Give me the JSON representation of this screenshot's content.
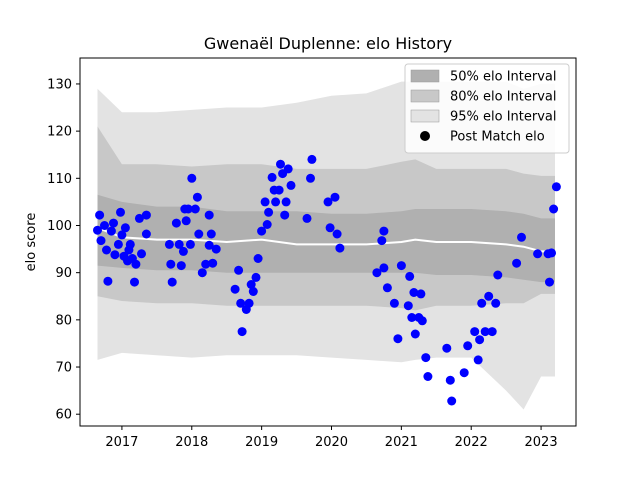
{
  "chart_data": {
    "type": "scatter",
    "title": "Gwenaël Duplenne: elo History",
    "xlabel": "",
    "ylabel": "elo score",
    "xlim": [
      2016.4,
      2023.5
    ],
    "ylim": [
      57.5,
      135.5
    ],
    "x_ticks": [
      2017,
      2018,
      2019,
      2020,
      2021,
      2022,
      2023
    ],
    "y_ticks": [
      60,
      70,
      80,
      90,
      100,
      110,
      120,
      130
    ],
    "legend": {
      "placement": "top-right",
      "entries": [
        {
          "label": "50% elo Interval",
          "color": "#b0b0b0"
        },
        {
          "label": "80% elo Interval",
          "color": "#c8c8c8"
        },
        {
          "label": "95% elo Interval",
          "color": "#e3e3e3"
        },
        {
          "label": "Post Match elo",
          "color": "#000000"
        }
      ]
    },
    "colors": {
      "points": "#0000ff",
      "mean_line": "#ffffff",
      "band50": "#b0b0b0",
      "band80": "#c8c8c8",
      "band95": "#e3e3e3"
    },
    "band_x": [
      2016.65,
      2017.0,
      2017.5,
      2018.0,
      2018.5,
      2019.0,
      2019.5,
      2020.0,
      2020.5,
      2021.0,
      2021.2,
      2021.5,
      2022.0,
      2022.5,
      2022.75,
      2023.0,
      2023.2
    ],
    "mean": [
      99.5,
      97.5,
      97.0,
      97.0,
      96.5,
      97.0,
      96.0,
      96.0,
      96.0,
      96.5,
      97.0,
      96.5,
      96.5,
      96.0,
      95.5,
      94.5,
      94.5
    ],
    "p50_low": [
      91.5,
      91.0,
      90.5,
      90.5,
      90.0,
      90.0,
      90.0,
      90.0,
      90.0,
      90.0,
      90.0,
      89.5,
      89.5,
      89.0,
      88.5,
      88.0,
      88.0
    ],
    "p50_high": [
      106.5,
      105.0,
      104.0,
      104.0,
      103.0,
      103.0,
      103.0,
      102.5,
      102.5,
      103.0,
      103.5,
      103.5,
      103.5,
      103.0,
      102.5,
      101.5,
      101.5
    ],
    "p80_low": [
      85.0,
      84.0,
      83.5,
      83.5,
      83.0,
      83.0,
      83.0,
      83.0,
      83.0,
      82.5,
      82.0,
      83.0,
      83.0,
      83.5,
      83.5,
      85.5,
      85.5
    ],
    "p80_high": [
      121.0,
      113.0,
      113.0,
      112.5,
      113.0,
      113.0,
      112.0,
      112.0,
      112.0,
      113.5,
      114.0,
      112.0,
      112.0,
      112.0,
      111.0,
      110.5,
      110.5
    ],
    "p95_low": [
      71.5,
      73.0,
      72.5,
      72.0,
      72.5,
      72.5,
      72.5,
      72.0,
      71.5,
      71.0,
      71.5,
      72.0,
      72.0,
      65.0,
      61.0,
      68.0,
      68.0
    ],
    "p95_high": [
      129.0,
      124.0,
      124.0,
      124.5,
      125.0,
      125.0,
      126.0,
      127.5,
      128.0,
      130.5,
      130.5,
      130.5,
      130.5,
      130.5,
      129.0,
      130.0,
      130.0
    ],
    "points": [
      [
        2016.65,
        99.0
      ],
      [
        2016.68,
        102.2
      ],
      [
        2016.7,
        96.8
      ],
      [
        2016.75,
        100.0
      ],
      [
        2016.78,
        94.8
      ],
      [
        2016.8,
        88.2
      ],
      [
        2016.85,
        98.8
      ],
      [
        2016.88,
        100.5
      ],
      [
        2016.9,
        93.8
      ],
      [
        2016.95,
        96.0
      ],
      [
        2016.98,
        102.8
      ],
      [
        2017.0,
        98.0
      ],
      [
        2017.03,
        93.5
      ],
      [
        2017.05,
        99.5
      ],
      [
        2017.08,
        92.5
      ],
      [
        2017.1,
        94.8
      ],
      [
        2017.12,
        96.0
      ],
      [
        2017.15,
        93.0
      ],
      [
        2017.18,
        88.0
      ],
      [
        2017.2,
        91.8
      ],
      [
        2017.25,
        101.5
      ],
      [
        2017.28,
        94.0
      ],
      [
        2017.35,
        102.2
      ],
      [
        2017.35,
        98.2
      ],
      [
        2017.68,
        96.0
      ],
      [
        2017.7,
        91.8
      ],
      [
        2017.72,
        88.0
      ],
      [
        2017.78,
        100.5
      ],
      [
        2017.82,
        96.0
      ],
      [
        2017.85,
        91.5
      ],
      [
        2017.88,
        94.5
      ],
      [
        2017.9,
        103.5
      ],
      [
        2017.92,
        101.0
      ],
      [
        2017.95,
        103.5
      ],
      [
        2017.98,
        96.0
      ],
      [
        2018.0,
        110.0
      ],
      [
        2018.05,
        103.5
      ],
      [
        2018.08,
        106.0
      ],
      [
        2018.1,
        98.2
      ],
      [
        2018.15,
        90.0
      ],
      [
        2018.2,
        91.8
      ],
      [
        2018.25,
        95.8
      ],
      [
        2018.25,
        102.2
      ],
      [
        2018.28,
        98.2
      ],
      [
        2018.3,
        92.0
      ],
      [
        2018.35,
        95.0
      ],
      [
        2018.62,
        86.5
      ],
      [
        2018.67,
        90.5
      ],
      [
        2018.7,
        83.5
      ],
      [
        2018.72,
        77.5
      ],
      [
        2018.78,
        82.2
      ],
      [
        2018.82,
        83.5
      ],
      [
        2018.85,
        87.5
      ],
      [
        2018.88,
        86.0
      ],
      [
        2018.92,
        89.0
      ],
      [
        2018.95,
        93.0
      ],
      [
        2019.0,
        98.8
      ],
      [
        2019.05,
        105.0
      ],
      [
        2019.08,
        100.2
      ],
      [
        2019.1,
        102.8
      ],
      [
        2019.15,
        110.2
      ],
      [
        2019.18,
        107.5
      ],
      [
        2019.2,
        105.0
      ],
      [
        2019.25,
        107.5
      ],
      [
        2019.27,
        113.0
      ],
      [
        2019.3,
        111.0
      ],
      [
        2019.33,
        102.2
      ],
      [
        2019.35,
        105.0
      ],
      [
        2019.38,
        112.0
      ],
      [
        2019.42,
        108.5
      ],
      [
        2019.65,
        101.5
      ],
      [
        2019.7,
        110.0
      ],
      [
        2019.72,
        114.0
      ],
      [
        2019.95,
        105.0
      ],
      [
        2019.98,
        99.5
      ],
      [
        2020.05,
        106.0
      ],
      [
        2020.08,
        98.2
      ],
      [
        2020.12,
        95.2
      ],
      [
        2020.65,
        90.0
      ],
      [
        2020.72,
        96.8
      ],
      [
        2020.75,
        91.0
      ],
      [
        2020.75,
        98.8
      ],
      [
        2020.8,
        86.8
      ],
      [
        2020.9,
        83.5
      ],
      [
        2020.95,
        76.0
      ],
      [
        2021.0,
        91.5
      ],
      [
        2021.1,
        83.0
      ],
      [
        2021.12,
        89.2
      ],
      [
        2021.15,
        80.5
      ],
      [
        2021.18,
        85.8
      ],
      [
        2021.2,
        77.0
      ],
      [
        2021.25,
        80.5
      ],
      [
        2021.3,
        79.8
      ],
      [
        2021.28,
        85.5
      ],
      [
        2021.35,
        72.0
      ],
      [
        2021.38,
        68.0
      ],
      [
        2021.65,
        74.0
      ],
      [
        2021.7,
        67.2
      ],
      [
        2021.72,
        62.8
      ],
      [
        2021.9,
        68.8
      ],
      [
        2021.95,
        74.5
      ],
      [
        2022.05,
        77.5
      ],
      [
        2022.1,
        71.5
      ],
      [
        2022.12,
        75.8
      ],
      [
        2022.15,
        83.5
      ],
      [
        2022.2,
        77.5
      ],
      [
        2022.25,
        85.0
      ],
      [
        2022.3,
        77.5
      ],
      [
        2022.35,
        83.5
      ],
      [
        2022.38,
        89.5
      ],
      [
        2022.65,
        92.0
      ],
      [
        2022.72,
        97.5
      ],
      [
        2022.95,
        94.0
      ],
      [
        2023.1,
        94.0
      ],
      [
        2023.12,
        88.0
      ],
      [
        2023.15,
        94.2
      ],
      [
        2023.18,
        103.5
      ],
      [
        2023.22,
        108.2
      ]
    ]
  }
}
